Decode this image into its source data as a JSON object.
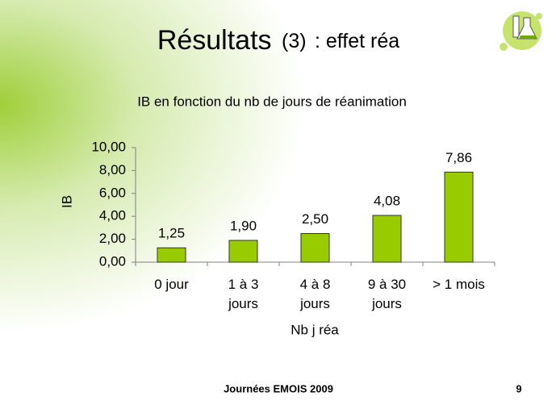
{
  "slide": {
    "title": [
      "Résultats",
      "(3)",
      ": effet réa"
    ],
    "footer": "Journées EMOIS 2009",
    "page_number": "9"
  },
  "chart_data": {
    "type": "bar",
    "title": "IB en fonction du nb de jours de réanimation",
    "x_label": "Nb j réa",
    "y_label": "IB",
    "categories": [
      "0 jour",
      "1 à 3 jours",
      "4 à 8 jours",
      "9 à 30 jours",
      "> 1 mois"
    ],
    "values": [
      1.25,
      1.9,
      2.5,
      4.08,
      7.86
    ],
    "value_labels": [
      "1,25",
      "1,90",
      "2,50",
      "4,08",
      "7,86"
    ],
    "color": "#99cc00",
    "ylim": [
      0,
      10
    ],
    "yticks": [
      {
        "value": 0,
        "label": "0,00"
      },
      {
        "value": 2,
        "label": "2,00"
      },
      {
        "value": 4,
        "label": "4,00"
      },
      {
        "value": 6,
        "label": "6,00"
      },
      {
        "value": 8,
        "label": "8,00"
      },
      {
        "value": 10,
        "label": "10,00"
      }
    ]
  }
}
